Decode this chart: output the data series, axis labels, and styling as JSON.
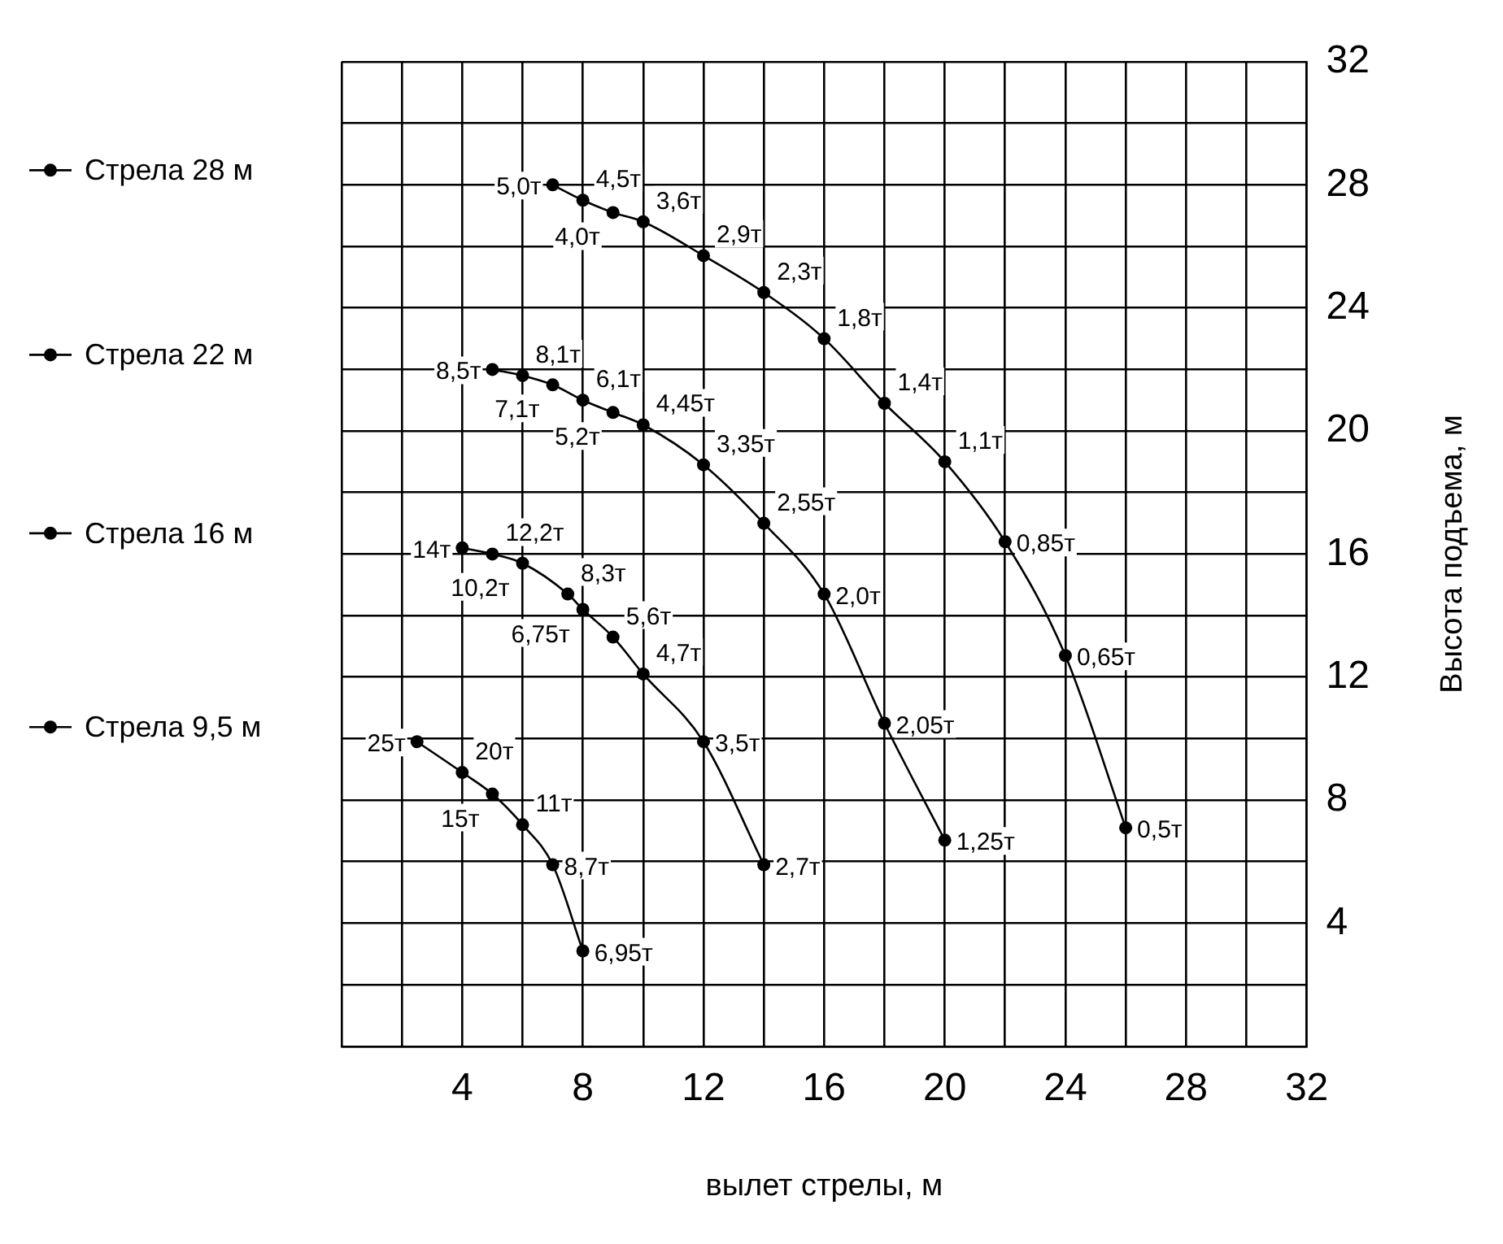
{
  "chart_data": {
    "type": "line",
    "xlabel": "вылет стрелы, м",
    "ylabel": "Высота подъема, м",
    "xlim": [
      0,
      32
    ],
    "ylim": [
      0,
      32
    ],
    "xticks": [
      {
        "value": 0,
        "label": null
      },
      {
        "value": 2,
        "label": null
      },
      4,
      {
        "value": 6,
        "label": null
      },
      8,
      {
        "value": 10,
        "label": null
      },
      12,
      {
        "value": 14,
        "label": null
      },
      16,
      {
        "value": 18,
        "label": null
      },
      20,
      {
        "value": 22,
        "label": null
      },
      24,
      {
        "value": 26,
        "label": null
      },
      28,
      {
        "value": 30,
        "label": null
      },
      32
    ],
    "yticks": [
      {
        "value": 0,
        "label": null
      },
      {
        "value": 2,
        "label": null
      },
      4,
      {
        "value": 6,
        "label": null
      },
      8,
      {
        "value": 10,
        "label": null
      },
      12,
      {
        "value": 14,
        "label": null
      },
      16,
      {
        "value": 18,
        "label": null
      },
      20,
      {
        "value": 22,
        "label": null
      },
      24,
      {
        "value": 26,
        "label": null
      },
      28,
      {
        "value": 30,
        "label": null
      },
      32
    ],
    "grid": true,
    "legend": "left",
    "marker": "circle",
    "line_style": "solid",
    "series": [
      {
        "name": "Стрела 28 м",
        "color": "#000000",
        "x": [
          7,
          8,
          9,
          10,
          12,
          14,
          16,
          18,
          20,
          22,
          24,
          26
        ],
        "values": [
          28,
          27.5,
          27.1,
          26.8,
          25.7,
          24.5,
          23,
          20.9,
          19,
          16.4,
          12.7,
          7.1
        ]
      },
      {
        "name": "Стрела 22 м",
        "color": "#000000",
        "x": [
          5,
          6,
          7,
          8,
          9,
          10,
          12,
          14,
          16,
          18,
          20
        ],
        "values": [
          22,
          21.8,
          21.5,
          21,
          20.6,
          20.2,
          18.9,
          17,
          14.7,
          10.5,
          6.7
        ]
      },
      {
        "name": "Стрела 16 м",
        "color": "#000000",
        "x": [
          4,
          5,
          6,
          7.5,
          8,
          9,
          10,
          12,
          14
        ],
        "values": [
          16.2,
          16,
          15.7,
          14.7,
          14.2,
          13.3,
          12.1,
          9.9,
          5.9
        ]
      },
      {
        "name": "Стрела 9,5 м",
        "color": "#000000",
        "x": [
          2.5,
          4,
          5,
          6,
          7,
          8
        ],
        "values": [
          9.9,
          8.9,
          8.2,
          7.2,
          5.9,
          3.1
        ]
      }
    ],
    "annotations": [
      {
        "text": "5,0т",
        "x": 7,
        "y": 28
      },
      {
        "text": "4,5т",
        "x": 8,
        "y": 27.5
      },
      {
        "text": "4,0т",
        "x": 9,
        "y": 27.1
      },
      {
        "text": "3,6т",
        "x": 10,
        "y": 26.8
      },
      {
        "text": "2,9т",
        "x": 12,
        "y": 25.7
      },
      {
        "text": "2,3т",
        "x": 14,
        "y": 24.5
      },
      {
        "text": "1,8т",
        "x": 16,
        "y": 23
      },
      {
        "text": "1,4т",
        "x": 18,
        "y": 20.9
      },
      {
        "text": "1,1т",
        "x": 20,
        "y": 19
      },
      {
        "text": "0,85т",
        "x": 22,
        "y": 16.4
      },
      {
        "text": "0,65т",
        "x": 24,
        "y": 12.7
      },
      {
        "text": "0,5т",
        "x": 26,
        "y": 7.1
      },
      {
        "text": "8,5т",
        "x": 5,
        "y": 22
      },
      {
        "text": "8,1т",
        "x": 6,
        "y": 21.8
      },
      {
        "text": "7,1т",
        "x": 7,
        "y": 21.5
      },
      {
        "text": "6,1т",
        "x": 8,
        "y": 21
      },
      {
        "text": "5,2т",
        "x": 9,
        "y": 20.6
      },
      {
        "text": "4,45т",
        "x": 10,
        "y": 20.2
      },
      {
        "text": "3,35т",
        "x": 12,
        "y": 18.9
      },
      {
        "text": "2,55т",
        "x": 14,
        "y": 17
      },
      {
        "text": "2,0т",
        "x": 16,
        "y": 14.7
      },
      {
        "text": "2,05т",
        "x": 18,
        "y": 10.5
      },
      {
        "text": "1,25т",
        "x": 20,
        "y": 6.7
      },
      {
        "text": "14т",
        "x": 4,
        "y": 16.2
      },
      {
        "text": "12,2т",
        "x": 5,
        "y": 16
      },
      {
        "text": "10,2т",
        "x": 6,
        "y": 15.7
      },
      {
        "text": "8,3т",
        "x": 7.5,
        "y": 14.7
      },
      {
        "text": "6,75т",
        "x": 8,
        "y": 14.2
      },
      {
        "text": "5,6т",
        "x": 9,
        "y": 13.3
      },
      {
        "text": "4,7т",
        "x": 10,
        "y": 12.1
      },
      {
        "text": "3,5т",
        "x": 12,
        "y": 9.9
      },
      {
        "text": "2,7т",
        "x": 14,
        "y": 5.9
      },
      {
        "text": "25т",
        "x": 2.5,
        "y": 9.9
      },
      {
        "text": "20т",
        "x": 4,
        "y": 8.9
      },
      {
        "text": "15т",
        "x": 5,
        "y": 8.2
      },
      {
        "text": "11т",
        "x": 6,
        "y": 7.2
      },
      {
        "text": "8,7т",
        "x": 7,
        "y": 5.9
      },
      {
        "text": "6,95т",
        "x": 8,
        "y": 3.1
      }
    ]
  }
}
